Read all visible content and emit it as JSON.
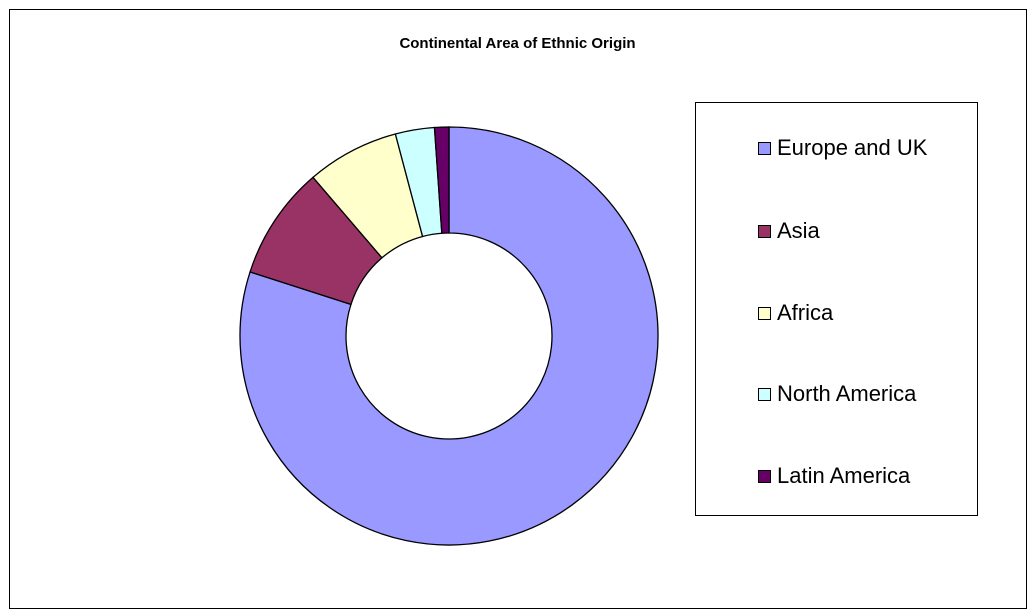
{
  "chart_data": {
    "type": "pie",
    "subtype": "donut",
    "title": "Continental Area of Ethnic Origin",
    "legend_position": "right",
    "series": [
      {
        "categories": [
          "Europe and UK",
          "Asia",
          "Africa",
          "North America",
          "Latin America"
        ],
        "values": [
          79.4,
          8.7,
          7.1,
          3.0,
          1.1
        ],
        "colors": [
          "#9999ff",
          "#993366",
          "#ffffcc",
          "#ccffff",
          "#660066"
        ]
      }
    ]
  }
}
